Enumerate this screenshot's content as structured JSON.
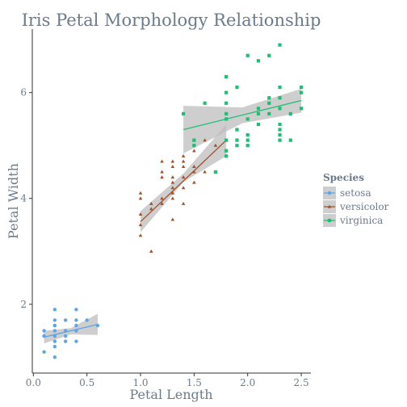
{
  "chart_data": {
    "type": "scatter",
    "title": "Iris Petal Morphology Relationship",
    "xlabel": "Petal Length",
    "ylabel": "Petal Width",
    "xlim": [
      -0.01,
      2.59
    ],
    "ylim": [
      0.7,
      7.2
    ],
    "x_ticks": [
      0.0,
      0.5,
      1.0,
      1.5,
      2.0,
      2.5
    ],
    "x_tick_labels": [
      "0.0",
      "0.5",
      "1.0",
      "1.5",
      "2.0",
      "2.5"
    ],
    "y_ticks": [
      2,
      4,
      6
    ],
    "y_tick_labels": [
      "2",
      "4",
      "6"
    ],
    "grid": false,
    "legend": {
      "title": "Species",
      "position": "right"
    },
    "series": [
      {
        "name": "setosa",
        "color": "#5DA5E8",
        "marker": "circle",
        "points": [
          [
            0.1,
            1.4
          ],
          [
            0.1,
            1.5
          ],
          [
            0.1,
            1.4
          ],
          [
            0.2,
            1.4
          ],
          [
            0.2,
            1.3
          ],
          [
            0.2,
            1.5
          ],
          [
            0.2,
            1.9
          ],
          [
            0.2,
            1.6
          ],
          [
            0.2,
            1.7
          ],
          [
            0.2,
            1.2
          ],
          [
            0.2,
            1.0
          ],
          [
            0.3,
            1.4
          ],
          [
            0.3,
            1.5
          ],
          [
            0.3,
            1.7
          ],
          [
            0.3,
            1.3
          ],
          [
            0.4,
            1.5
          ],
          [
            0.4,
            1.7
          ],
          [
            0.4,
            1.9
          ],
          [
            0.4,
            1.6
          ],
          [
            0.4,
            1.3
          ],
          [
            0.5,
            1.7
          ],
          [
            0.6,
            1.6
          ],
          [
            0.1,
            1.1
          ],
          [
            0.2,
            1.6
          ]
        ],
        "fit": [
          [
            0.1,
            1.38
          ],
          [
            0.6,
            1.62
          ]
        ],
        "band_upper": [
          [
            0.1,
            1.5
          ],
          [
            0.35,
            1.55
          ],
          [
            0.6,
            1.82
          ]
        ],
        "band_lower": [
          [
            0.1,
            1.26
          ],
          [
            0.35,
            1.43
          ],
          [
            0.6,
            1.42
          ]
        ]
      },
      {
        "name": "versicolor",
        "color": "#A0522D",
        "marker": "triangle",
        "points": [
          [
            1.0,
            3.3
          ],
          [
            1.0,
            3.5
          ],
          [
            1.0,
            3.7
          ],
          [
            1.0,
            4.0
          ],
          [
            1.0,
            4.1
          ],
          [
            1.1,
            3.0
          ],
          [
            1.1,
            3.8
          ],
          [
            1.1,
            3.9
          ],
          [
            1.2,
            3.9
          ],
          [
            1.2,
            4.0
          ],
          [
            1.2,
            4.4
          ],
          [
            1.2,
            4.5
          ],
          [
            1.2,
            4.7
          ],
          [
            1.3,
            3.6
          ],
          [
            1.3,
            4.0
          ],
          [
            1.3,
            4.1
          ],
          [
            1.3,
            4.2
          ],
          [
            1.3,
            4.3
          ],
          [
            1.3,
            4.4
          ],
          [
            1.3,
            4.6
          ],
          [
            1.3,
            4.7
          ],
          [
            1.4,
            3.9
          ],
          [
            1.4,
            4.4
          ],
          [
            1.4,
            4.6
          ],
          [
            1.4,
            4.7
          ],
          [
            1.4,
            4.8
          ],
          [
            1.5,
            4.5
          ],
          [
            1.5,
            4.6
          ],
          [
            1.5,
            4.9
          ],
          [
            1.5,
            5.1
          ],
          [
            1.6,
            4.5
          ],
          [
            1.6,
            5.1
          ],
          [
            1.7,
            5.0
          ],
          [
            1.8,
            4.8
          ],
          [
            1.8,
            4.9
          ],
          [
            1.8,
            5.1
          ],
          [
            1.4,
            4.2
          ],
          [
            1.5,
            4.3
          ]
        ],
        "fit": [
          [
            1.0,
            3.56
          ],
          [
            1.8,
            5.1
          ]
        ],
        "band_upper": [
          [
            1.0,
            3.76
          ],
          [
            1.4,
            4.47
          ],
          [
            1.8,
            5.4
          ]
        ],
        "band_lower": [
          [
            1.0,
            3.36
          ],
          [
            1.4,
            4.31
          ],
          [
            1.8,
            4.8
          ]
        ]
      },
      {
        "name": "virginica",
        "color": "#1DBF73",
        "marker": "square",
        "points": [
          [
            1.4,
            5.6
          ],
          [
            1.5,
            5.0
          ],
          [
            1.5,
            5.1
          ],
          [
            1.6,
            5.8
          ],
          [
            1.7,
            4.5
          ],
          [
            1.8,
            4.8
          ],
          [
            1.8,
            4.9
          ],
          [
            1.8,
            5.1
          ],
          [
            1.8,
            5.5
          ],
          [
            1.8,
            5.6
          ],
          [
            1.8,
            5.8
          ],
          [
            1.8,
            6.0
          ],
          [
            1.8,
            6.3
          ],
          [
            1.9,
            5.0
          ],
          [
            1.9,
            5.1
          ],
          [
            1.9,
            5.3
          ],
          [
            1.9,
            6.1
          ],
          [
            2.0,
            5.0
          ],
          [
            2.0,
            5.1
          ],
          [
            2.0,
            5.2
          ],
          [
            2.0,
            6.7
          ],
          [
            2.1,
            5.4
          ],
          [
            2.1,
            5.6
          ],
          [
            2.1,
            5.7
          ],
          [
            2.1,
            6.6
          ],
          [
            2.2,
            5.6
          ],
          [
            2.2,
            5.8
          ],
          [
            2.2,
            6.7
          ],
          [
            2.3,
            5.1
          ],
          [
            2.3,
            5.2
          ],
          [
            2.3,
            5.3
          ],
          [
            2.3,
            5.4
          ],
          [
            2.3,
            5.7
          ],
          [
            2.3,
            5.9
          ],
          [
            2.3,
            6.1
          ],
          [
            2.3,
            6.9
          ],
          [
            2.4,
            5.1
          ],
          [
            2.4,
            5.6
          ],
          [
            2.5,
            5.7
          ],
          [
            2.5,
            6.0
          ],
          [
            2.5,
            6.1
          ],
          [
            2.0,
            5.5
          ],
          [
            2.2,
            5.9
          ]
        ],
        "fit": [
          [
            1.4,
            5.3
          ],
          [
            2.5,
            5.85
          ]
        ],
        "band_upper": [
          [
            1.4,
            5.75
          ],
          [
            1.95,
            5.72
          ],
          [
            2.5,
            6.07
          ]
        ],
        "band_lower": [
          [
            1.4,
            4.85
          ],
          [
            1.95,
            5.42
          ],
          [
            2.5,
            5.62
          ]
        ]
      }
    ]
  }
}
